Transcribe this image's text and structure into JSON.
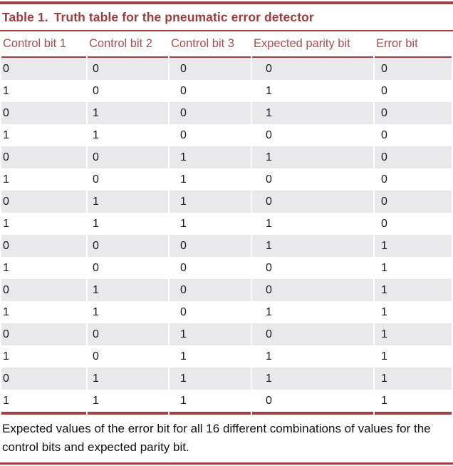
{
  "table": {
    "title_label": "Table 1.",
    "title_text": "Truth table for the pneumatic error detector",
    "headers": [
      "Control bit 1",
      "Control bit 2",
      "Control bit 3",
      "Expected parity bit",
      "Error bit"
    ],
    "rows": [
      [
        "0",
        "0",
        "0",
        "0",
        "0"
      ],
      [
        "1",
        "0",
        "0",
        "1",
        "0"
      ],
      [
        "0",
        "1",
        "0",
        "1",
        "0"
      ],
      [
        "1",
        "1",
        "0",
        "0",
        "0"
      ],
      [
        "0",
        "0",
        "1",
        "1",
        "0"
      ],
      [
        "1",
        "0",
        "1",
        "0",
        "0"
      ],
      [
        "0",
        "1",
        "1",
        "0",
        "0"
      ],
      [
        "1",
        "1",
        "1",
        "1",
        "0"
      ],
      [
        "0",
        "0",
        "0",
        "1",
        "1"
      ],
      [
        "1",
        "0",
        "0",
        "0",
        "1"
      ],
      [
        "0",
        "1",
        "0",
        "0",
        "1"
      ],
      [
        "1",
        "1",
        "0",
        "1",
        "1"
      ],
      [
        "0",
        "0",
        "1",
        "0",
        "1"
      ],
      [
        "1",
        "0",
        "1",
        "1",
        "1"
      ],
      [
        "0",
        "1",
        "1",
        "1",
        "1"
      ],
      [
        "1",
        "1",
        "1",
        "0",
        "1"
      ]
    ],
    "caption": "Expected values of the error bit for all 16 different combinations of values for the control bits and expected parity bit."
  },
  "colors": {
    "rule_red": "#9d4145",
    "title_red": "#9e3c40",
    "header_red": "#ad4c4f",
    "band_gray": "#e9e9eb"
  }
}
